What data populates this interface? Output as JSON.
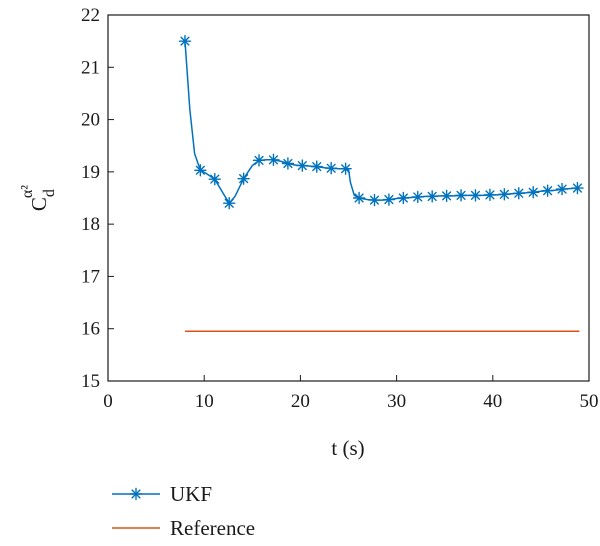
{
  "chart_data": {
    "type": "line",
    "xlabel": "t (s)",
    "ylabel": {
      "base": "C",
      "subscript": "d",
      "superscript": "α²"
    },
    "xlim": [
      0,
      50
    ],
    "ylim": [
      15,
      22
    ],
    "xticks": [
      "0",
      "10",
      "20",
      "30",
      "40",
      "50"
    ],
    "yticks": [
      "15",
      "16",
      "17",
      "18",
      "19",
      "20",
      "21",
      "22"
    ],
    "grid": false,
    "legend_position": "bottom-left, outside plot",
    "series": [
      {
        "name": "UKF",
        "color": "#0072bd",
        "marker": "asterisk",
        "x": [
          8,
          8.5,
          9,
          9.6,
          10.2,
          11.1,
          12,
          12.6,
          13.2,
          14.1,
          15,
          15.7,
          16.5,
          17.2,
          18,
          18.7,
          19.5,
          20.2,
          21,
          21.7,
          22.5,
          23.2,
          24,
          24.6,
          25,
          25.2,
          25.6,
          26.1,
          27,
          27.7,
          28.5,
          29.2,
          30,
          30.7,
          31.5,
          32.2,
          33,
          33.7,
          34.5,
          35.2,
          36,
          36.7,
          37.5,
          38.2,
          39,
          39.7,
          40.5,
          41.2,
          42,
          42.7,
          43.5,
          44.2,
          45,
          45.7,
          46.5,
          47.2,
          48,
          48.8
        ],
        "y": [
          21.5,
          20.2,
          19.35,
          19.03,
          18.97,
          18.86,
          18.58,
          18.4,
          18.53,
          18.87,
          19.12,
          19.22,
          19.23,
          19.23,
          19.2,
          19.16,
          19.13,
          19.12,
          19.11,
          19.1,
          19.08,
          19.07,
          19.06,
          19.06,
          19.05,
          18.8,
          18.55,
          18.5,
          18.47,
          18.46,
          18.46,
          18.47,
          18.49,
          18.5,
          18.51,
          18.52,
          18.53,
          18.53,
          18.54,
          18.54,
          18.54,
          18.55,
          18.55,
          18.55,
          18.55,
          18.56,
          18.56,
          18.57,
          18.58,
          18.59,
          18.6,
          18.61,
          18.63,
          18.64,
          18.65,
          18.67,
          18.68,
          18.69
        ],
        "marker_x": [
          8,
          9.6,
          11.1,
          12.6,
          14.1,
          15.7,
          17.2,
          18.7,
          20.2,
          21.7,
          23.2,
          24.7,
          26.1,
          27.7,
          29.2,
          30.7,
          32.2,
          33.7,
          35.2,
          36.7,
          38.2,
          39.7,
          41.2,
          42.7,
          44.2,
          45.7,
          47.2,
          48.8
        ],
        "marker_y": [
          21.5,
          19.03,
          18.86,
          18.4,
          18.87,
          19.22,
          19.23,
          19.16,
          19.12,
          19.1,
          19.07,
          19.06,
          18.5,
          18.46,
          18.47,
          18.5,
          18.52,
          18.53,
          18.54,
          18.55,
          18.55,
          18.56,
          18.57,
          18.59,
          18.61,
          18.64,
          18.67,
          18.69
        ]
      },
      {
        "name": "Reference",
        "color": "#d95319",
        "marker": "none",
        "x": [
          8,
          49
        ],
        "y": [
          15.95,
          15.95
        ]
      }
    ]
  }
}
